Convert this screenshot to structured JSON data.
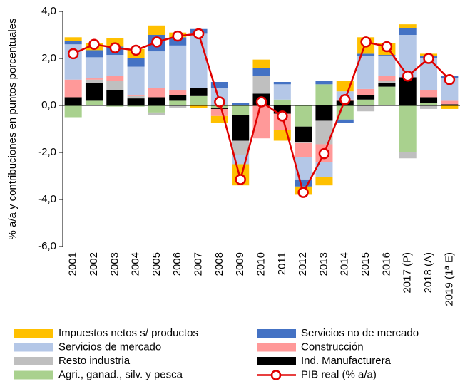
{
  "chart_data": {
    "type": "bar",
    "stacked": true,
    "y_label": "% a/a y contribuciones en puntos porcentuales",
    "categories": [
      "2001",
      "2002",
      "2003",
      "2004",
      "2005",
      "2006",
      "2007",
      "2008",
      "2009",
      "2010",
      "2011",
      "2012",
      "2013",
      "2014",
      "2015",
      "2016",
      "2017 (P)",
      "2018 (A)",
      "2019 (1ª E)"
    ],
    "ylim": [
      -6,
      4
    ],
    "yticks": [
      {
        "value": -6,
        "label": "-6,0"
      },
      {
        "value": -4,
        "label": "-4,0"
      },
      {
        "value": -2,
        "label": "-2,0"
      },
      {
        "value": 0,
        "label": "0,0"
      },
      {
        "value": 2,
        "label": "2,0"
      },
      {
        "value": 4,
        "label": "4,0"
      }
    ],
    "series": [
      {
        "name": "Impuestos netos s/ productos",
        "color": "#ffc000",
        "values": [
          0.15,
          0.3,
          0.35,
          0.4,
          0.4,
          0.2,
          -0.1,
          -0.3,
          -0.9,
          0.35,
          -0.45,
          -0.35,
          -0.35,
          0.45,
          0.7,
          0.5,
          0.15,
          0.1,
          -0.15
        ]
      },
      {
        "name": "Servicios no de mercado",
        "color": "#4472c4",
        "values": [
          0.15,
          0.3,
          0.35,
          0.35,
          0.7,
          0.35,
          0.2,
          0.25,
          0.1,
          0.35,
          0.1,
          -0.3,
          0.15,
          -0.15,
          0.1,
          0.05,
          0.3,
          0.1,
          0.1
        ]
      },
      {
        "name": "Servicios de mercado",
        "color": "#b4c7e7",
        "values": [
          1.5,
          0.9,
          0.9,
          1.2,
          1.55,
          1.9,
          2.3,
          0.75,
          -0.4,
          0,
          0.65,
          -0.95,
          -0.65,
          0.35,
          1.4,
          0.85,
          1.8,
          1.35,
          0.95
        ]
      },
      {
        "name": "Construcción",
        "color": "#ff9999",
        "values": [
          0.75,
          0.05,
          0.2,
          0.05,
          0.4,
          0.2,
          0,
          -0.3,
          0,
          -1.4,
          -0.7,
          -0.6,
          -0.75,
          0.05,
          0.25,
          0.2,
          0,
          0.3,
          0.15
        ]
      },
      {
        "name": "Resto industria",
        "color": "#bfbfbf",
        "values": [
          0,
          0.15,
          0.4,
          0.1,
          -0.1,
          -0.1,
          0,
          0,
          -0.6,
          0.75,
          0,
          -0.05,
          -1.0,
          0,
          -0.25,
          0.1,
          -0.25,
          -0.15,
          0
        ]
      },
      {
        "name": "Ind. Manufacturera",
        "color": "#000000",
        "values": [
          0.35,
          0.75,
          0.65,
          0.3,
          0.35,
          0.25,
          0.35,
          -0.05,
          -1.1,
          0.5,
          -0.35,
          -0.65,
          -0.65,
          0.2,
          0.2,
          0.15,
          1.2,
          0.25,
          0.05
        ]
      },
      {
        "name": "Agri., ganad., silv. y pesca",
        "color": "#a9d18e",
        "values": [
          -0.5,
          0.2,
          -0.05,
          -0.05,
          -0.3,
          0.2,
          0.4,
          -0.1,
          -0.4,
          0,
          0.25,
          -0.9,
          0.9,
          -0.6,
          0.25,
          0.8,
          -2.0,
          0.1,
          0
        ]
      },
      {
        "name": "PIB real (% a/a)",
        "color": "#e00000",
        "type": "line",
        "values": [
          2.2,
          2.6,
          2.45,
          2.35,
          2.7,
          2.95,
          3.05,
          0.15,
          -3.15,
          0.15,
          -0.45,
          -3.7,
          -2.05,
          0.25,
          2.7,
          2.5,
          1.25,
          2.0,
          1.1
        ]
      }
    ]
  }
}
